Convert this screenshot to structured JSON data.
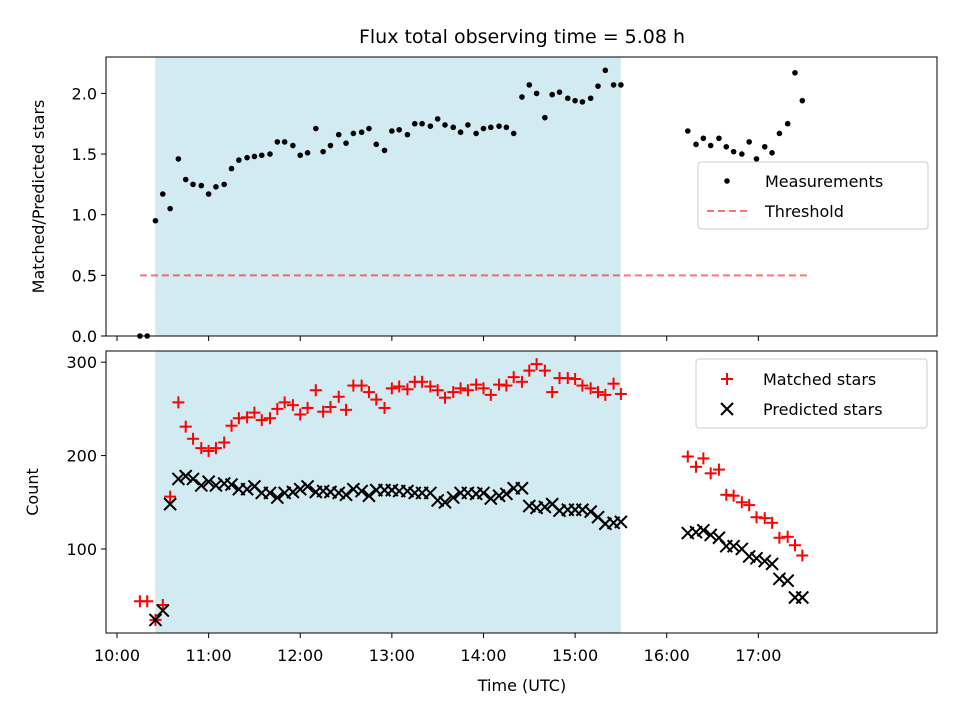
{
  "title": "Flux total observing time = 5.08 h",
  "colors": {
    "shade": "#add8e6",
    "matched": "#ff0000",
    "predicted": "#000000",
    "threshold": "#ff0000",
    "measurement": "#000000"
  },
  "chart_data": [
    {
      "type": "scatter",
      "ylabel": "Matched/Predicted stars",
      "xlim": [
        9.88,
        18.95
      ],
      "ylim": [
        0,
        2.3
      ],
      "yticks": [
        "0.0",
        "0.5",
        "1.0",
        "1.5",
        "2.0"
      ],
      "ytick_values": [
        0,
        0.5,
        1.0,
        1.5,
        2.0
      ],
      "shaded_span": [
        10.417,
        15.5
      ],
      "legend": {
        "placement": "center-right",
        "entries": [
          "Measurements",
          "Threshold"
        ]
      },
      "threshold": {
        "name": "Threshold",
        "value": 0.5,
        "x_range": [
          10.25,
          17.55
        ],
        "style": "dashed"
      },
      "series": [
        {
          "name": "Measurements",
          "marker": "dot",
          "x": [
            10.25,
            10.33,
            10.42,
            10.5,
            10.58,
            10.67,
            10.75,
            10.83,
            10.92,
            11.0,
            11.08,
            11.17,
            11.25,
            11.33,
            11.42,
            11.5,
            11.58,
            11.67,
            11.75,
            11.83,
            11.92,
            12.0,
            12.08,
            12.17,
            12.25,
            12.33,
            12.42,
            12.5,
            12.58,
            12.67,
            12.75,
            12.83,
            12.92,
            13.0,
            13.08,
            13.17,
            13.25,
            13.33,
            13.42,
            13.5,
            13.58,
            13.67,
            13.75,
            13.83,
            13.92,
            14.0,
            14.08,
            14.17,
            14.25,
            14.33,
            14.42,
            14.5,
            14.58,
            14.67,
            14.75,
            14.83,
            14.92,
            15.0,
            15.08,
            15.17,
            15.25,
            15.33,
            15.42,
            15.5,
            16.23,
            16.32,
            16.4,
            16.48,
            16.57,
            16.65,
            16.73,
            16.82,
            16.9,
            16.98,
            17.07,
            17.15,
            17.23,
            17.32,
            17.4,
            17.48
          ],
          "y": [
            0.0,
            0.0,
            0.95,
            1.17,
            1.05,
            1.46,
            1.29,
            1.25,
            1.24,
            1.17,
            1.23,
            1.25,
            1.38,
            1.45,
            1.47,
            1.48,
            1.49,
            1.5,
            1.6,
            1.6,
            1.57,
            1.49,
            1.51,
            1.71,
            1.52,
            1.57,
            1.66,
            1.59,
            1.67,
            1.68,
            1.71,
            1.58,
            1.53,
            1.69,
            1.7,
            1.66,
            1.75,
            1.75,
            1.73,
            1.79,
            1.74,
            1.72,
            1.68,
            1.74,
            1.67,
            1.71,
            1.72,
            1.73,
            1.72,
            1.67,
            1.97,
            2.07,
            2.0,
            1.8,
            1.99,
            2.01,
            1.96,
            1.94,
            1.93,
            1.96,
            2.06,
            2.19,
            2.07,
            2.07,
            1.69,
            1.58,
            1.63,
            1.57,
            1.63,
            1.56,
            1.52,
            1.5,
            1.6,
            1.46,
            1.56,
            1.51,
            1.67,
            1.75,
            2.17,
            1.94
          ]
        }
      ]
    },
    {
      "type": "scatter",
      "ylabel": "Count",
      "xlabel": "Time (UTC)",
      "xlim": [
        9.88,
        18.95
      ],
      "ylim": [
        10,
        312
      ],
      "yticks": [
        "100",
        "200",
        "300"
      ],
      "ytick_values": [
        100,
        200,
        300
      ],
      "xticks": [
        "10:00",
        "11:00",
        "12:00",
        "13:00",
        "14:00",
        "15:00",
        "16:00",
        "17:00"
      ],
      "xtick_values": [
        10,
        11,
        12,
        13,
        14,
        15,
        16,
        17
      ],
      "shaded_span": [
        10.417,
        15.5
      ],
      "legend": {
        "placement": "top-right",
        "entries": [
          "Matched stars",
          "Predicted stars"
        ]
      },
      "series": [
        {
          "name": "Matched stars",
          "marker": "plus",
          "x": [
            10.25,
            10.33,
            10.42,
            10.5,
            10.58,
            10.67,
            10.75,
            10.83,
            10.92,
            11.0,
            11.08,
            11.17,
            11.25,
            11.33,
            11.42,
            11.5,
            11.58,
            11.67,
            11.75,
            11.83,
            11.92,
            12.0,
            12.08,
            12.17,
            12.25,
            12.33,
            12.42,
            12.5,
            12.58,
            12.67,
            12.75,
            12.83,
            12.92,
            13.0,
            13.08,
            13.17,
            13.25,
            13.33,
            13.42,
            13.5,
            13.58,
            13.67,
            13.75,
            13.83,
            13.92,
            14.0,
            14.08,
            14.17,
            14.25,
            14.33,
            14.42,
            14.5,
            14.58,
            14.67,
            14.75,
            14.83,
            14.92,
            15.0,
            15.08,
            15.17,
            15.25,
            15.33,
            15.42,
            15.5,
            16.23,
            16.32,
            16.4,
            16.48,
            16.57,
            16.65,
            16.73,
            16.82,
            16.9,
            16.98,
            17.07,
            17.15,
            17.23,
            17.32,
            17.4,
            17.48
          ],
          "y": [
            44,
            44,
            24,
            40,
            156,
            257,
            231,
            218,
            208,
            205,
            208,
            214,
            232,
            240,
            241,
            246,
            238,
            240,
            250,
            257,
            254,
            244,
            251,
            270,
            247,
            252,
            263,
            249,
            275,
            275,
            268,
            260,
            251,
            272,
            274,
            271,
            279,
            279,
            274,
            270,
            262,
            268,
            272,
            270,
            276,
            272,
            265,
            276,
            275,
            284,
            279,
            291,
            298,
            291,
            268,
            283,
            283,
            282,
            275,
            272,
            268,
            265,
            277,
            266,
            199,
            188,
            197,
            181,
            185,
            158,
            157,
            150,
            147,
            134,
            133,
            128,
            112,
            113,
            104,
            93
          ]
        },
        {
          "name": "Predicted stars",
          "marker": "x",
          "x": [
            10.42,
            10.5,
            10.58,
            10.67,
            10.75,
            10.83,
            10.92,
            11.0,
            11.08,
            11.17,
            11.25,
            11.33,
            11.42,
            11.5,
            11.58,
            11.67,
            11.75,
            11.83,
            11.92,
            12.0,
            12.08,
            12.17,
            12.25,
            12.33,
            12.42,
            12.5,
            12.58,
            12.67,
            12.75,
            12.83,
            12.92,
            13.0,
            13.08,
            13.17,
            13.25,
            13.33,
            13.42,
            13.5,
            13.58,
            13.67,
            13.75,
            13.83,
            13.92,
            14.0,
            14.08,
            14.17,
            14.25,
            14.33,
            14.42,
            14.5,
            14.58,
            14.67,
            14.75,
            14.83,
            14.92,
            15.0,
            15.08,
            15.17,
            15.25,
            15.33,
            15.42,
            15.5,
            16.23,
            16.32,
            16.4,
            16.48,
            16.57,
            16.65,
            16.73,
            16.82,
            16.9,
            16.98,
            17.07,
            17.15,
            17.23,
            17.32,
            17.4,
            17.48
          ],
          "y": [
            24,
            34,
            148,
            175,
            178,
            175,
            168,
            172,
            168,
            170,
            169,
            164,
            164,
            167,
            160,
            160,
            155,
            160,
            161,
            164,
            167,
            161,
            162,
            161,
            160,
            158,
            164,
            162,
            157,
            163,
            163,
            163,
            162,
            162,
            160,
            160,
            160,
            152,
            150,
            155,
            160,
            160,
            159,
            160,
            154,
            157,
            159,
            165,
            165,
            146,
            144,
            145,
            148,
            141,
            142,
            142,
            142,
            140,
            134,
            127,
            128,
            129,
            117,
            118,
            120,
            115,
            112,
            103,
            103,
            100,
            92,
            90,
            87,
            84,
            68,
            66,
            48,
            48
          ]
        }
      ]
    }
  ]
}
